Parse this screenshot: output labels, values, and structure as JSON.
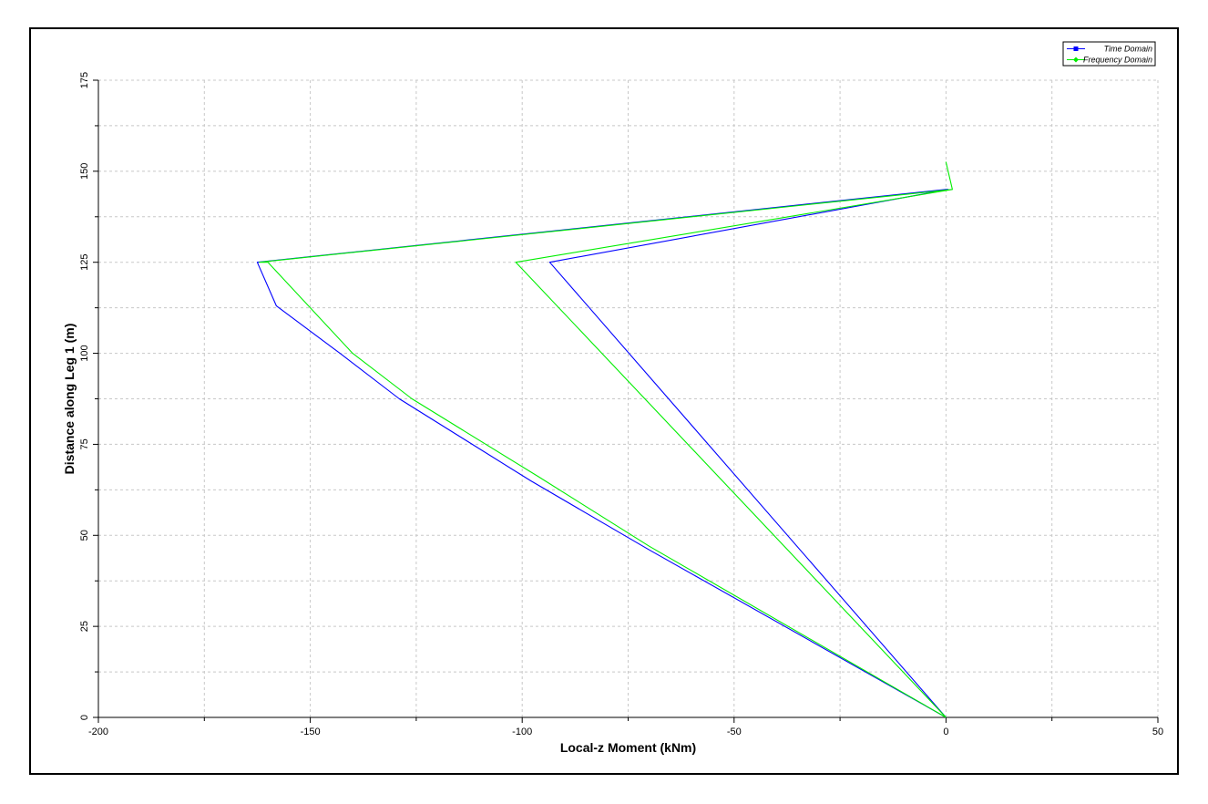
{
  "chart_data": {
    "type": "line",
    "title": "",
    "xlabel": "Local-z Moment (kNm)",
    "ylabel": "Distance along Leg 1 (m)",
    "xlim": [
      -200,
      50
    ],
    "ylim": [
      0,
      175
    ],
    "xticks": [
      -200,
      -150,
      -100,
      -50,
      0,
      50
    ],
    "yticks": [
      0,
      25,
      50,
      75,
      100,
      125,
      150,
      175
    ],
    "xtick_labels": [
      "-200",
      "-150",
      "-100",
      "-50",
      "0",
      "50"
    ],
    "ytick_labels": [
      "0",
      "25",
      "50",
      "75",
      "100",
      "125",
      "150",
      "175"
    ],
    "grid": true,
    "legend_position": "top-right",
    "series": [
      {
        "name": "Time Domain",
        "color": "#0000ff",
        "marker": "square",
        "points": [
          [
            0,
            0
          ],
          [
            -93.5,
            125
          ],
          [
            0.5,
            145
          ],
          [
            0,
            145
          ],
          [
            -162.5,
            125
          ],
          [
            -158,
            113
          ],
          [
            -143,
            100
          ],
          [
            -129,
            87.5
          ],
          [
            -98,
            65
          ],
          [
            -70,
            46
          ],
          [
            0,
            0
          ]
        ]
      },
      {
        "name": "Frequency Domain",
        "color": "#00ee00",
        "marker": "diamond",
        "points": [
          [
            0,
            0
          ],
          [
            -101.5,
            125
          ],
          [
            1.5,
            145
          ],
          [
            0,
            152.5
          ],
          [
            1.5,
            145
          ],
          [
            -162,
            125
          ],
          [
            -160,
            125
          ],
          [
            -140,
            100
          ],
          [
            -126,
            87.5
          ],
          [
            -96,
            66
          ],
          [
            -70,
            47
          ],
          [
            0,
            0
          ]
        ]
      }
    ]
  }
}
